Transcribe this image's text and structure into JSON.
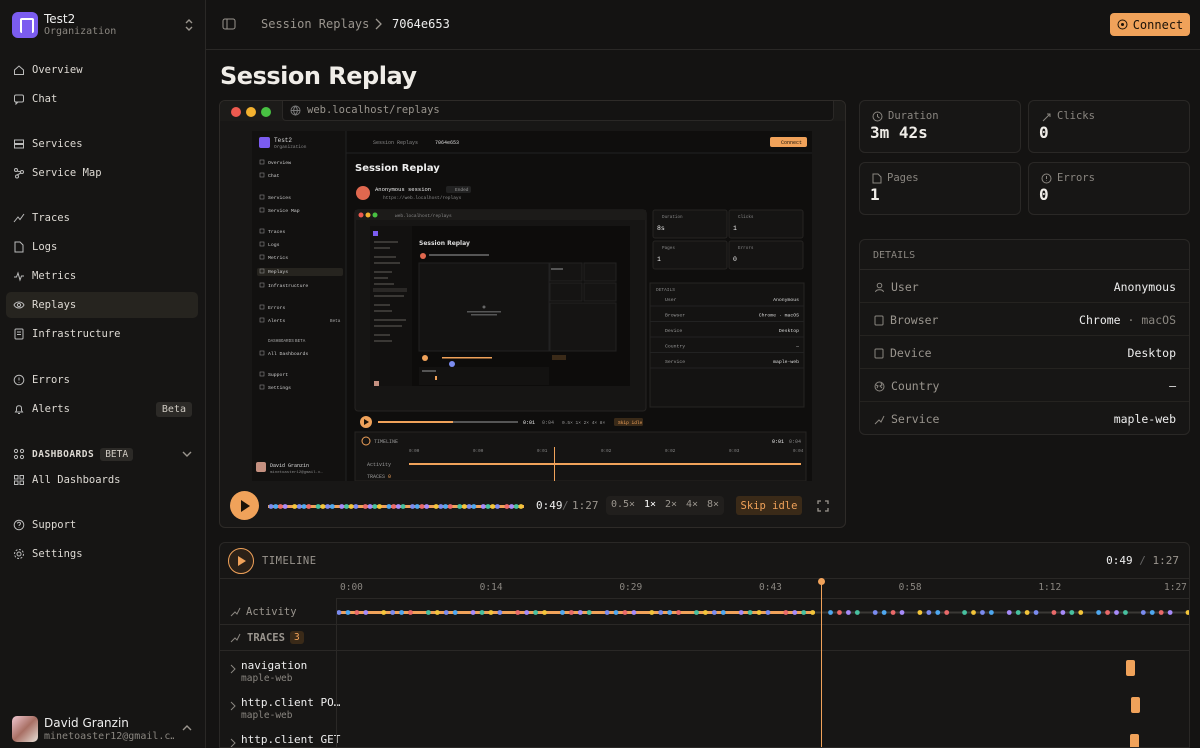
{
  "org": {
    "name": "Test2",
    "sub": "Organization"
  },
  "sidebar": {
    "items": [
      {
        "label": "Overview",
        "icon": "house-icon"
      },
      {
        "label": "Chat",
        "icon": "chat-icon"
      },
      {
        "label": "Services",
        "icon": "server-icon"
      },
      {
        "label": "Service Map",
        "icon": "graph-icon"
      },
      {
        "label": "Traces",
        "icon": "traces-icon"
      },
      {
        "label": "Logs",
        "icon": "file-icon"
      },
      {
        "label": "Metrics",
        "icon": "pulse-icon"
      },
      {
        "label": "Replays",
        "icon": "eye-icon"
      },
      {
        "label": "Infrastructure",
        "icon": "box-icon"
      },
      {
        "label": "Errors",
        "icon": "alert-circle-icon"
      },
      {
        "label": "Alerts",
        "icon": "bell-icon",
        "badge": "Beta"
      },
      {
        "label": "All Dashboards",
        "icon": "grid-icon"
      },
      {
        "label": "Support",
        "icon": "help-icon"
      },
      {
        "label": "Settings",
        "icon": "gear-icon"
      }
    ],
    "dashboards_section": {
      "label": "DASHBOARDS",
      "badge": "BETA"
    }
  },
  "user": {
    "name": "David Granzin",
    "email": "minetoaster12@gmail.c…"
  },
  "header": {
    "breadcrumb_parent": "Session Replays",
    "breadcrumb_current": "7064e653",
    "connect_label": "Connect"
  },
  "page": {
    "title": "Session Replay"
  },
  "player": {
    "url": "web.localhost/replays",
    "current_time": "0:49",
    "total_time": "1:27",
    "speeds": [
      "0.5×",
      "1×",
      "2×",
      "4×",
      "8×"
    ],
    "active_speed": "1×",
    "skip_idle_label": "Skip idle",
    "progress": 0.56
  },
  "stats": {
    "duration": {
      "label": "Duration",
      "value": "3m 42s"
    },
    "clicks": {
      "label": "Clicks",
      "value": "0"
    },
    "pages": {
      "label": "Pages",
      "value": "1"
    },
    "errors": {
      "label": "Errors",
      "value": "0"
    }
  },
  "details": {
    "header": "DETAILS",
    "rows": [
      {
        "label": "User",
        "value": "Anonymous"
      },
      {
        "label": "Browser",
        "value": "Chrome",
        "extra": "macOS"
      },
      {
        "label": "Device",
        "value": "Desktop"
      },
      {
        "label": "Country",
        "value": "—"
      },
      {
        "label": "Service",
        "value": "maple-web"
      }
    ]
  },
  "timeline": {
    "label": "TIMELINE",
    "current_time": "0:49",
    "total_time": "1:27",
    "ticks": [
      "0:00",
      "0:14",
      "0:29",
      "0:43",
      "0:58",
      "1:12",
      "1:27"
    ],
    "activity_label": "Activity",
    "traces_label": "TRACES",
    "traces_count": "3",
    "traces": [
      {
        "name": "navigation",
        "service": "maple-web"
      },
      {
        "name": "http.client PO…",
        "service": "maple-web"
      },
      {
        "name": "http.client GET",
        "service": "maple-web"
      }
    ]
  },
  "mini": {
    "org_name": "Test2",
    "org_sub": "Organization",
    "breadcrumb_parent": "Session Replays",
    "breadcrumb_current": "7064e653",
    "connect": "Connect",
    "title": "Session Replay",
    "session_name": "Anonymous session",
    "session_status": "Ended",
    "session_url": "https://web.localhost/replays",
    "url": "web.localhost/replays",
    "nav": [
      "Overview",
      "Chat",
      "Services",
      "Service Map",
      "Traces",
      "Logs",
      "Metrics",
      "Replays",
      "Infrastructure",
      "Errors",
      "Alerts",
      "All Dashboards",
      "Support",
      "Settings"
    ],
    "alerts_badge": "Beta",
    "dashboards_label": "DASHBOARDS",
    "dashboards_badge": "BETA",
    "stats": [
      {
        "label": "Duration",
        "value": "8s"
      },
      {
        "label": "Clicks",
        "value": "1"
      },
      {
        "label": "Pages",
        "value": "1"
      },
      {
        "label": "Errors",
        "value": "0"
      }
    ],
    "details_header": "DETAILS",
    "details": [
      {
        "label": "User",
        "value": "Anonymous"
      },
      {
        "label": "Browser",
        "value": "Chrome · macOS"
      },
      {
        "label": "Device",
        "value": "Desktop"
      },
      {
        "label": "Country",
        "value": "—"
      },
      {
        "label": "Service",
        "value": "maple-web"
      }
    ],
    "time": "0:01",
    "total": "0:04",
    "speeds": "0.5× 1× 2× 4× 8×",
    "skip": "Skip idle",
    "timeline_label": "TIMELINE",
    "ticks": [
      "0:00",
      "0:00",
      "0:01",
      "0:02",
      "0:02",
      "0:03",
      "0:04"
    ],
    "activity": "Activity",
    "traces": "TRACES",
    "traces_count": "0",
    "trace_name": "navigation",
    "trace_service": "maple-web",
    "user_name": "David Granzin",
    "user_email": "minetoaster12@gmail.c…"
  },
  "colors": {
    "accent": "#f0a25a",
    "brand": "#7b5cf0",
    "bg": "#141312"
  }
}
